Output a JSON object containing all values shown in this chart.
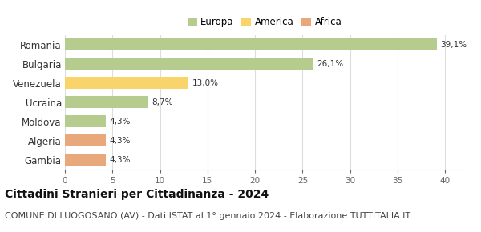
{
  "categories": [
    "Romania",
    "Bulgaria",
    "Venezuela",
    "Ucraina",
    "Moldova",
    "Algeria",
    "Gambia"
  ],
  "values": [
    39.1,
    26.1,
    13.0,
    8.7,
    4.3,
    4.3,
    4.3
  ],
  "labels": [
    "39,1%",
    "26,1%",
    "13,0%",
    "8,7%",
    "4,3%",
    "4,3%",
    "4,3%"
  ],
  "colors": [
    "#b5cc8e",
    "#b5cc8e",
    "#f9d46a",
    "#b5cc8e",
    "#b5cc8e",
    "#e8a87c",
    "#e8a87c"
  ],
  "legend": [
    {
      "label": "Europa",
      "color": "#b5cc8e"
    },
    {
      "label": "America",
      "color": "#f9d46a"
    },
    {
      "label": "Africa",
      "color": "#e8a87c"
    }
  ],
  "xlim": [
    0,
    42
  ],
  "xticks": [
    0,
    5,
    10,
    15,
    20,
    25,
    30,
    35,
    40
  ],
  "title": "Cittadini Stranieri per Cittadinanza - 2024",
  "subtitle": "COMUNE DI LUOGOSANO (AV) - Dati ISTAT al 1° gennaio 2024 - Elaborazione TUTTITALIA.IT",
  "title_fontsize": 10,
  "subtitle_fontsize": 8,
  "background_color": "#ffffff",
  "grid_color": "#dddddd",
  "bar_height": 0.6
}
